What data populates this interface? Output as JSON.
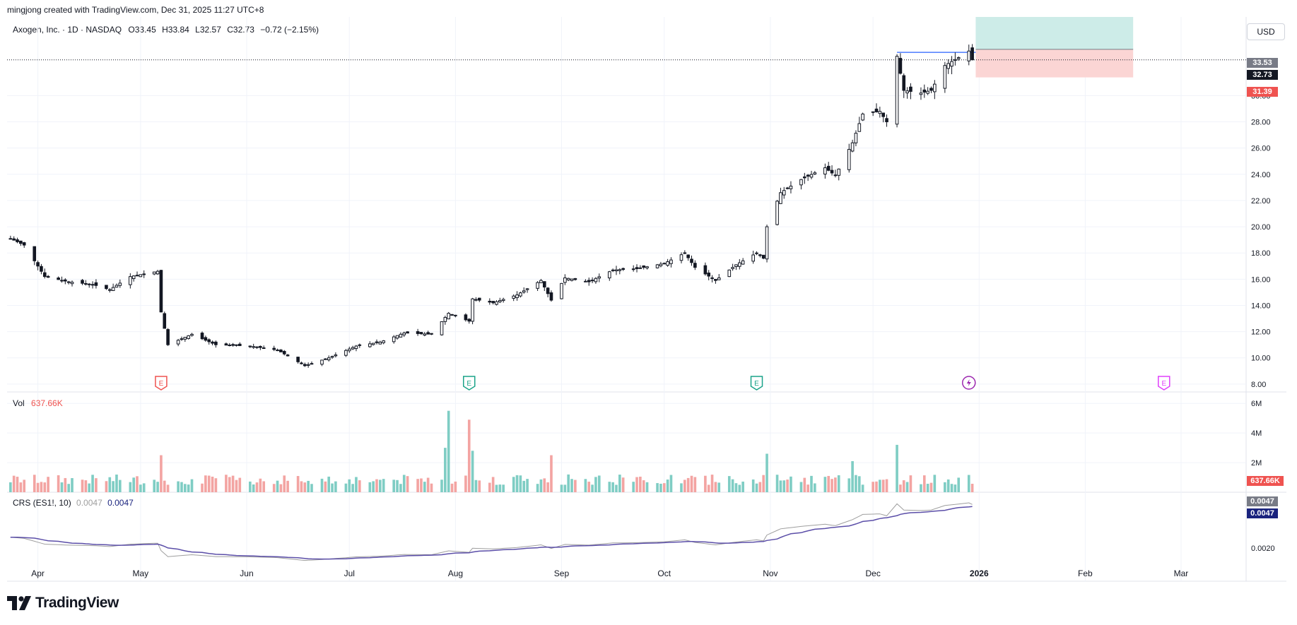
{
  "header": {
    "credit": "mingjong created with TradingView.com, Dec 31, 2025 11:27 UTC+8",
    "symbol": "Axogen, Inc. · 1D · NASDAQ",
    "ohlc": {
      "o_label": "O",
      "o": "33.45",
      "h_label": "H",
      "h": "33.84",
      "l_label": "L",
      "l": "32.57",
      "c_label": "C",
      "c": "32.73",
      "change": "−0.72 (−2.15%)"
    }
  },
  "currency_button": "USD",
  "price_tags": {
    "target": "33.53",
    "last": "32.73",
    "stop": "31.39",
    "volume_last": "637.66K",
    "crs_1": "0.0047",
    "crs_2": "0.0047"
  },
  "volume_pane": {
    "label": "Vol",
    "value": "637.66K"
  },
  "crs_pane": {
    "label": "CRS (ES1!, 10)",
    "value_1": "0.0047",
    "value_2": "0.0047"
  },
  "footer": {
    "logo_text": "TradingView"
  },
  "colors": {
    "up": "#26a69a",
    "down": "#ef5350",
    "vol_up": "#7fcdc4",
    "vol_down": "#f3a4a2",
    "crs_main": "#5b4ea8",
    "crs_raw": "#9e9e9e",
    "target_zone": "#cdece8",
    "stop_zone": "#fbd5d4",
    "last_price": "#131722",
    "earnings_red": "#ef5350",
    "earnings_green": "#1aa389",
    "dividend_purple": "#9c27b0",
    "future_earnings": "#e040fb"
  },
  "chart_data": {
    "type": "candlestick",
    "price_axis": {
      "ticks": [
        "8.00",
        "10.00",
        "12.00",
        "14.00",
        "16.00",
        "18.00",
        "20.00",
        "22.00",
        "24.00",
        "26.00",
        "28.00",
        "30.00"
      ],
      "ylim": [
        7.4,
        36.0
      ]
    },
    "volume_axis": {
      "ticks": [
        "2M",
        "4M",
        "6M"
      ],
      "ylim": [
        0,
        6.2
      ]
    },
    "crs_axis": {
      "ticks": [
        "0.0020"
      ]
    },
    "x_axis": {
      "labels": [
        "Apr",
        "May",
        "Jun",
        "Jul",
        "Aug",
        "Sep",
        "Oct",
        "Nov",
        "Dec",
        "2026",
        "Feb",
        "Mar"
      ]
    },
    "price_anchors": [
      [
        "2025-03-24",
        19.1
      ],
      [
        "2025-03-28",
        18.6
      ],
      [
        "2025-04-03",
        16.2
      ],
      [
        "2025-04-10",
        15.8
      ],
      [
        "2025-04-17",
        15.6
      ],
      [
        "2025-04-22",
        15.2
      ],
      [
        "2025-04-28",
        16.2
      ],
      [
        "2025-05-06",
        16.6
      ],
      [
        "2025-05-07",
        13.5
      ],
      [
        "2025-05-09",
        11.0
      ],
      [
        "2025-05-16",
        11.8
      ],
      [
        "2025-05-23",
        11.0
      ],
      [
        "2025-06-02",
        10.9
      ],
      [
        "2025-06-10",
        10.6
      ],
      [
        "2025-06-18",
        9.4
      ],
      [
        "2025-06-25",
        10.0
      ],
      [
        "2025-07-03",
        10.9
      ],
      [
        "2025-07-10",
        11.2
      ],
      [
        "2025-07-17",
        11.9
      ],
      [
        "2025-07-25",
        11.8
      ],
      [
        "2025-07-30",
        13.4
      ],
      [
        "2025-08-05",
        12.8
      ],
      [
        "2025-08-06",
        14.5
      ],
      [
        "2025-08-12",
        14.2
      ],
      [
        "2025-08-19",
        14.8
      ],
      [
        "2025-08-26",
        15.9
      ],
      [
        "2025-08-29",
        14.4
      ],
      [
        "2025-09-02",
        16.1
      ],
      [
        "2025-09-09",
        15.8
      ],
      [
        "2025-09-16",
        16.7
      ],
      [
        "2025-09-23",
        16.8
      ],
      [
        "2025-10-01",
        17.2
      ],
      [
        "2025-10-07",
        18.0
      ],
      [
        "2025-10-10",
        16.9
      ],
      [
        "2025-10-16",
        15.9
      ],
      [
        "2025-10-22",
        17.1
      ],
      [
        "2025-10-28",
        18.0
      ],
      [
        "2025-10-30",
        17.6
      ],
      [
        "2025-10-31",
        20.0
      ],
      [
        "2025-11-04",
        22.6
      ],
      [
        "2025-11-10",
        23.6
      ],
      [
        "2025-11-17",
        24.5
      ],
      [
        "2025-11-20",
        23.9
      ],
      [
        "2025-11-25",
        26.4
      ],
      [
        "2025-11-28",
        28.6
      ],
      [
        "2025-12-03",
        28.8
      ],
      [
        "2025-12-05",
        28.0
      ],
      [
        "2025-12-08",
        33.0
      ],
      [
        "2025-12-10",
        30.4
      ],
      [
        "2025-12-15",
        30.2
      ],
      [
        "2025-12-18",
        30.4
      ],
      [
        "2025-12-22",
        32.3
      ],
      [
        "2025-12-26",
        32.9
      ],
      [
        "2025-12-29",
        33.4
      ],
      [
        "2025-12-30",
        32.73
      ]
    ],
    "volume_spikes_millions": [
      [
        "2025-05-07",
        2.5
      ],
      [
        "2025-07-29",
        3.0
      ],
      [
        "2025-07-30",
        5.5
      ],
      [
        "2025-08-05",
        4.9
      ],
      [
        "2025-08-06",
        2.8
      ],
      [
        "2025-08-29",
        2.5
      ],
      [
        "2025-10-31",
        2.6
      ],
      [
        "2025-11-25",
        2.1
      ],
      [
        "2025-12-08",
        3.2
      ]
    ],
    "earnings_markers": [
      {
        "date": "2025-05-07",
        "kind": "earnings_red"
      },
      {
        "date": "2025-08-05",
        "kind": "earnings_green"
      },
      {
        "date": "2025-10-28",
        "kind": "earnings_green"
      },
      {
        "date": "2025-12-29",
        "kind": "dividend_purple"
      },
      {
        "date": "2026-02-24",
        "kind": "future_earnings"
      }
    ],
    "position": {
      "entry": 32.73,
      "target": 33.53,
      "stop": 31.39,
      "zone_top": 36.0
    },
    "support_line": 33.3
  }
}
